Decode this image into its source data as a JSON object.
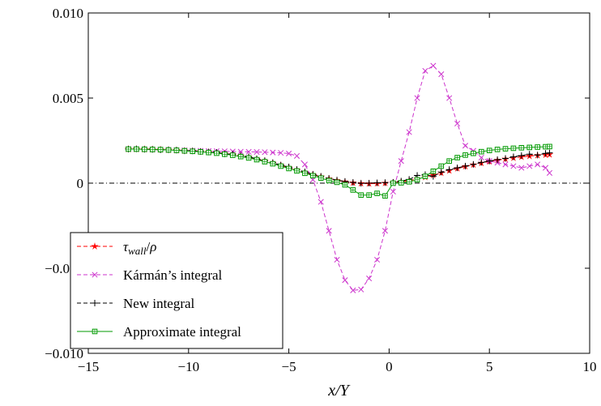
{
  "chart_data": {
    "type": "line",
    "title": "",
    "xlabel": "x/Y",
    "ylabel": "",
    "xlim": [
      -15,
      10
    ],
    "ylim": [
      -0.01,
      0.01
    ],
    "x_ticks": [
      -15,
      -10,
      -5,
      0,
      5,
      10
    ],
    "x_tick_labels": [
      "−15",
      "−10",
      "−5",
      "0",
      "5",
      "10"
    ],
    "y_ticks": [
      -0.01,
      -0.005,
      0,
      0.005,
      0.01
    ],
    "y_tick_labels": [
      "−0.010",
      "−0.005",
      "0",
      "0.005",
      "0.010"
    ],
    "grid": false,
    "legend_position": "bottom-left",
    "zero_line": true,
    "series": [
      {
        "name": "τwall/ρ",
        "color": "#ff0000",
        "line": "dashed",
        "marker": "star",
        "x": [
          -13.0,
          -12.6,
          -12.2,
          -11.8,
          -11.4,
          -11.0,
          -10.6,
          -10.2,
          -9.8,
          -9.4,
          -9.0,
          -8.6,
          -8.2,
          -7.8,
          -7.4,
          -7.0,
          -6.6,
          -6.2,
          -5.8,
          -5.4,
          -5.0,
          -4.6,
          -4.2,
          -3.8,
          -3.4,
          -3.0,
          -2.6,
          -2.2,
          -1.8,
          -1.4,
          -1.0,
          -0.6,
          -0.2,
          0.2,
          0.6,
          1.0,
          1.4,
          1.8,
          2.2,
          2.6,
          3.0,
          3.4,
          3.8,
          4.2,
          4.6,
          5.0,
          5.4,
          5.8,
          6.2,
          6.6,
          7.0,
          7.4,
          7.8,
          8.0
        ],
        "y": [
          0.002,
          0.002,
          0.00199,
          0.00198,
          0.00197,
          0.00195,
          0.00193,
          0.0019,
          0.00188,
          0.00185,
          0.00182,
          0.00178,
          0.00173,
          0.00168,
          0.0016,
          0.00152,
          0.00142,
          0.0013,
          0.00118,
          0.00105,
          0.00092,
          0.00078,
          0.00064,
          0.0005,
          0.00038,
          0.00026,
          0.00016,
          8e-05,
          2e-05,
          -2e-05,
          -3e-05,
          -2e-05,
          0.0,
          3e-05,
          8e-05,
          0.00015,
          0.00024,
          0.00035,
          0.00047,
          0.0006,
          0.00073,
          0.00086,
          0.00098,
          0.00108,
          0.00118,
          0.00127,
          0.00135,
          0.00142,
          0.00148,
          0.00154,
          0.00159,
          0.00163,
          0.00166,
          0.00168
        ]
      },
      {
        "name": "Kármán’s integral",
        "color": "#cc33cc",
        "line": "dashed",
        "marker": "x",
        "x": [
          -13.0,
          -12.6,
          -12.2,
          -11.8,
          -11.4,
          -11.0,
          -10.6,
          -10.2,
          -9.8,
          -9.4,
          -9.0,
          -8.6,
          -8.2,
          -7.8,
          -7.4,
          -7.0,
          -6.6,
          -6.2,
          -5.8,
          -5.4,
          -5.0,
          -4.6,
          -4.2,
          -3.8,
          -3.4,
          -3.0,
          -2.6,
          -2.2,
          -1.8,
          -1.4,
          -1.0,
          -0.6,
          -0.2,
          0.2,
          0.6,
          1.0,
          1.4,
          1.8,
          2.2,
          2.6,
          3.0,
          3.4,
          3.8,
          4.2,
          4.6,
          5.0,
          5.4,
          5.8,
          6.2,
          6.6,
          7.0,
          7.4,
          7.8,
          8.0
        ],
        "y": [
          0.002,
          0.002,
          0.00199,
          0.00198,
          0.00197,
          0.00196,
          0.00194,
          0.00193,
          0.00191,
          0.0019,
          0.00189,
          0.00188,
          0.00187,
          0.00186,
          0.00185,
          0.00184,
          0.00183,
          0.00182,
          0.0018,
          0.00178,
          0.00174,
          0.0016,
          0.0011,
          0.0002,
          -0.0011,
          -0.0028,
          -0.0045,
          -0.0057,
          -0.0063,
          -0.00625,
          -0.0056,
          -0.0045,
          -0.0028,
          -0.0005,
          0.0013,
          0.003,
          0.005,
          0.0066,
          0.0069,
          0.0064,
          0.005,
          0.0035,
          0.0022,
          0.0019,
          0.0015,
          0.0013,
          0.0012,
          0.0011,
          0.001,
          0.0009,
          0.001,
          0.0011,
          0.0009,
          0.0006
        ]
      },
      {
        "name": "New integral",
        "color": "#000000",
        "line": "dashed",
        "marker": "plus",
        "x": [
          -13.0,
          -12.6,
          -12.2,
          -11.8,
          -11.4,
          -11.0,
          -10.6,
          -10.2,
          -9.8,
          -9.4,
          -9.0,
          -8.6,
          -8.2,
          -7.8,
          -7.4,
          -7.0,
          -6.6,
          -6.2,
          -5.8,
          -5.4,
          -5.0,
          -4.6,
          -4.2,
          -3.8,
          -3.4,
          -3.0,
          -2.6,
          -2.2,
          -1.8,
          -1.4,
          -1.0,
          -0.6,
          -0.2,
          0.2,
          0.6,
          1.0,
          1.4,
          1.8,
          2.2,
          2.6,
          3.0,
          3.4,
          3.8,
          4.2,
          4.6,
          5.0,
          5.4,
          5.8,
          6.2,
          6.6,
          7.0,
          7.4,
          7.8,
          8.0
        ],
        "y": [
          0.002,
          0.00201,
          0.00199,
          0.00198,
          0.00196,
          0.00196,
          0.00194,
          0.0019,
          0.00189,
          0.00186,
          0.00183,
          0.00181,
          0.00172,
          0.0017,
          0.00161,
          0.00155,
          0.00143,
          0.00132,
          0.0012,
          0.00106,
          0.00095,
          0.0008,
          0.00066,
          0.00052,
          0.0004,
          0.00028,
          0.00018,
          0.0001,
          4e-05,
          -1e-05,
          0.0,
          2e-05,
          3e-05,
          5e-05,
          0.00012,
          0.00022,
          0.00045,
          0.0005,
          0.0004,
          0.00065,
          0.0008,
          0.0009,
          0.001,
          0.0011,
          0.00122,
          0.0013,
          0.00138,
          0.00145,
          0.00155,
          0.00162,
          0.0017,
          0.00165,
          0.00175,
          0.00178
        ]
      },
      {
        "name": "Approximate integral",
        "color": "#009900",
        "line": "solid",
        "marker": "square",
        "x": [
          -13.0,
          -12.6,
          -12.2,
          -11.8,
          -11.4,
          -11.0,
          -10.6,
          -10.2,
          -9.8,
          -9.4,
          -9.0,
          -8.6,
          -8.2,
          -7.8,
          -7.4,
          -7.0,
          -6.6,
          -6.2,
          -5.8,
          -5.4,
          -5.0,
          -4.6,
          -4.2,
          -3.8,
          -3.4,
          -3.0,
          -2.6,
          -2.2,
          -1.8,
          -1.4,
          -1.0,
          -0.6,
          -0.2,
          0.2,
          0.6,
          1.0,
          1.4,
          1.8,
          2.2,
          2.6,
          3.0,
          3.4,
          3.8,
          4.2,
          4.6,
          5.0,
          5.4,
          5.8,
          6.2,
          6.6,
          7.0,
          7.4,
          7.8,
          8.0
        ],
        "y": [
          0.002,
          0.002,
          0.00199,
          0.00198,
          0.00197,
          0.00195,
          0.00193,
          0.0019,
          0.00187,
          0.00184,
          0.0018,
          0.00176,
          0.0017,
          0.00164,
          0.00156,
          0.00148,
          0.00138,
          0.00126,
          0.00114,
          0.001,
          0.00086,
          0.00072,
          0.00058,
          0.00044,
          0.0003,
          0.00015,
          5e-05,
          -0.0001,
          -0.0004,
          -0.0007,
          -0.0007,
          -0.0006,
          -0.00075,
          0.0,
          2e-05,
          8e-05,
          0.0002,
          0.0004,
          0.0007,
          0.001,
          0.0013,
          0.0015,
          0.00165,
          0.00175,
          0.00185,
          0.00192,
          0.00198,
          0.00202,
          0.00205,
          0.00208,
          0.0021,
          0.00212,
          0.00214,
          0.00215
        ]
      }
    ]
  }
}
